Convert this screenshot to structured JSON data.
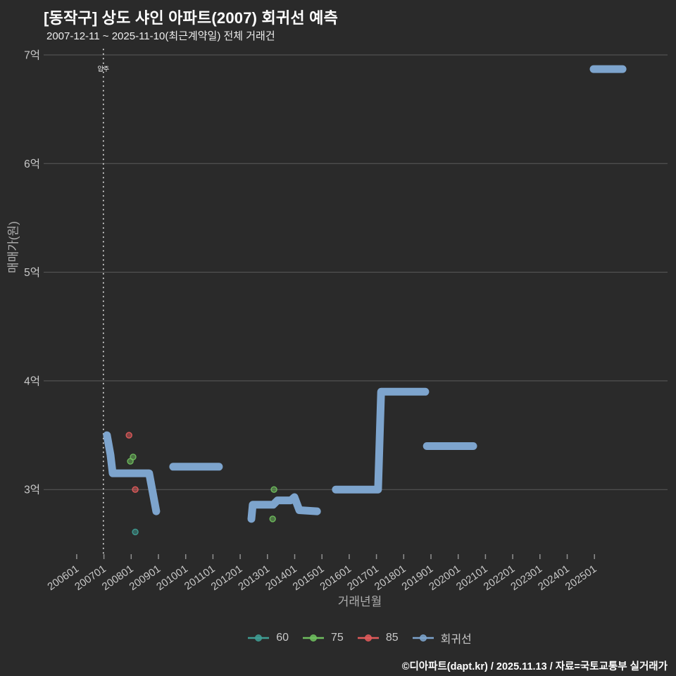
{
  "header": {
    "title": "[동작구] 상도 샤인 아파트(2007) 회귀선 예측",
    "subtitle": "2007-12-11 ~ 2025-11-10(최근계약일) 전체 거래건"
  },
  "footer": {
    "credit": "©디아파트(dapt.kr) / 2025.11.13 / 자료=국토교통부 실거래가"
  },
  "colors": {
    "background": "#2a2a2a",
    "grid": "#5b5b5b",
    "tick": "#8f8f8f",
    "tick_label": "#c8c8c8",
    "axis_title": "#aeaeae",
    "annotation": "#dcdcdc",
    "regression": "#7da4cd",
    "series_60": "#3f9e94",
    "series_75": "#6fbe5e",
    "series_85": "#e15b5b"
  },
  "chart_data": {
    "type": "scatter",
    "title": "[동작구] 상도 샤인 아파트(2007) 회귀선 예측",
    "subtitle": "2007-12-11 ~ 2025-11-10(최근계약일) 전체 거래건",
    "xlabel": "거래년월",
    "ylabel": "매매가(원)",
    "grid": "horizontal-only",
    "legend_position": "bottom-center",
    "x_ticks": [
      "200601",
      "200701",
      "200801",
      "200901",
      "201001",
      "201101",
      "201201",
      "201301",
      "201401",
      "201501",
      "201601",
      "201701",
      "201801",
      "201901",
      "202001",
      "202101",
      "202201",
      "202301",
      "202401",
      "202501"
    ],
    "y_ticks": [
      {
        "label": "7억",
        "value": 7
      },
      {
        "label": "6억",
        "value": 6
      },
      {
        "label": "5억",
        "value": 5
      },
      {
        "label": "4억",
        "value": 4
      },
      {
        "label": "3억",
        "value": 3
      }
    ],
    "y_unit": "억원",
    "ylim": [
      2.4,
      7.12
    ],
    "xlim": [
      2004.8,
      2027.7
    ],
    "annotation": {
      "label": "입주",
      "x_year": 2006.98
    },
    "series": [
      {
        "name": "60",
        "type": "scatter",
        "color_key": "series_60",
        "points": [
          [
            2008.15,
            2.61
          ]
        ]
      },
      {
        "name": "75",
        "type": "scatter",
        "color_key": "series_75",
        "points": [
          [
            2007.97,
            3.26
          ],
          [
            2008.07,
            3.3
          ],
          [
            2013.19,
            2.73
          ],
          [
            2013.24,
            3.0
          ]
        ]
      },
      {
        "name": "85",
        "type": "scatter",
        "color_key": "series_85",
        "points": [
          [
            2007.92,
            3.5
          ],
          [
            2008.15,
            3.0
          ]
        ]
      },
      {
        "name": "회귀선",
        "type": "line",
        "color_key": "regression",
        "segments": [
          [
            [
              2007.11,
              3.5
            ],
            [
              2007.24,
              3.32
            ],
            [
              2007.32,
              3.15
            ],
            [
              2008.66,
              3.15
            ],
            [
              2008.92,
              2.8
            ]
          ],
          [
            [
              2009.54,
              3.21
            ],
            [
              2011.22,
              3.21
            ]
          ],
          [
            [
              2012.41,
              2.73
            ],
            [
              2012.46,
              2.86
            ],
            [
              2013.21,
              2.86
            ],
            [
              2013.37,
              2.9
            ],
            [
              2013.86,
              2.9
            ],
            [
              2013.99,
              2.93
            ],
            [
              2014.17,
              2.81
            ],
            [
              2014.82,
              2.8
            ]
          ],
          [
            [
              2015.51,
              3.0
            ],
            [
              2017.06,
              3.0
            ],
            [
              2017.17,
              3.9
            ],
            [
              2018.79,
              3.9
            ]
          ],
          [
            [
              2018.85,
              3.4
            ],
            [
              2020.55,
              3.4
            ]
          ],
          [
            [
              2024.97,
              6.87
            ],
            [
              2026.03,
              6.87
            ]
          ]
        ]
      }
    ]
  }
}
